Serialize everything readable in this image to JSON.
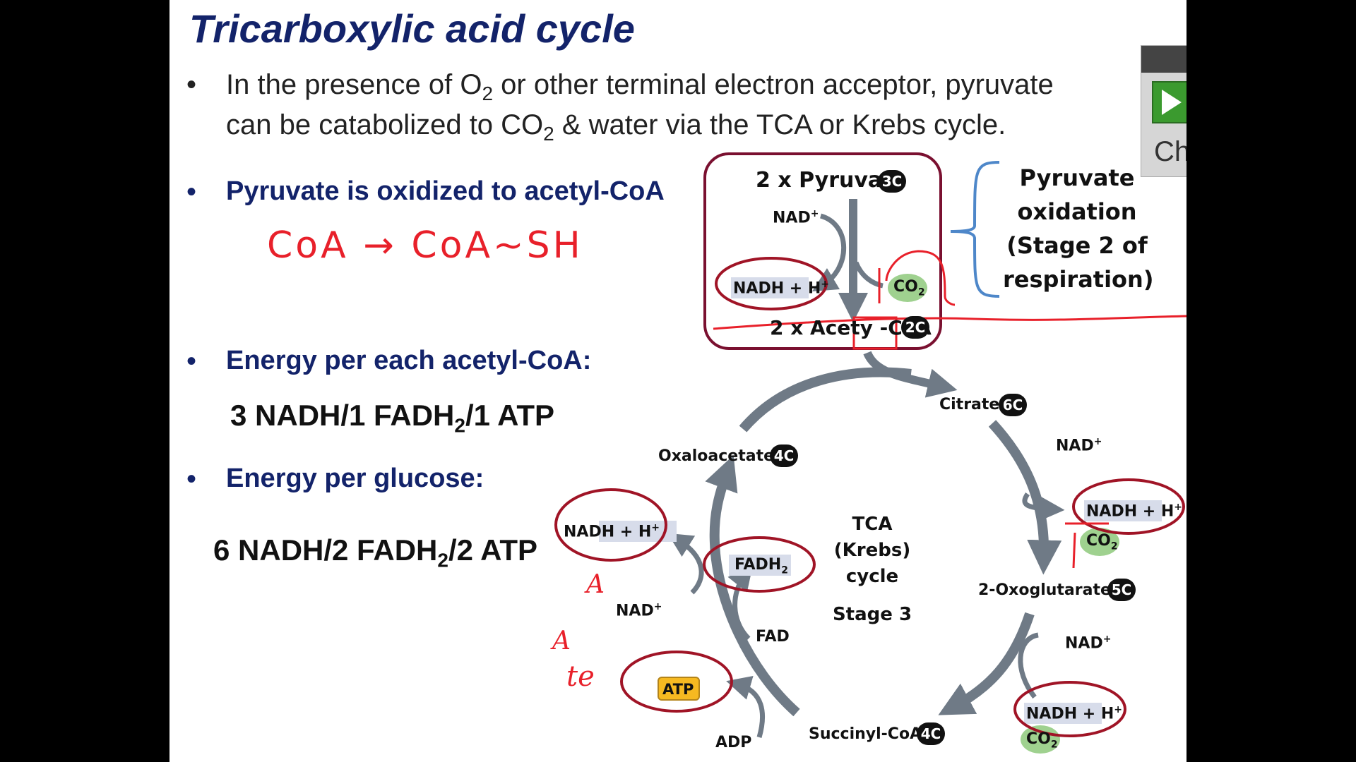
{
  "slide": {
    "title": "Tricarboxylic acid cycle",
    "bullet_glyph": "•",
    "bullet1_part1": "In the presence of O",
    "bullet1_sub1": "2",
    "bullet1_part2": " or other terminal electron acceptor, pyruvate",
    "bullet1_line2_part1": "can be catabolized to CO",
    "bullet1_line2_sub": "2",
    "bullet1_line2_part2": " & water via the TCA or Krebs cycle.",
    "bullet2": "Pyruvate is oxidized to acetyl-CoA",
    "bullet3": "Energy per each acetyl-CoA:",
    "energy_acetyl_part1": "3 NADH/1 FADH",
    "energy_acetyl_sub": "2",
    "energy_acetyl_part2": "/1 ATP",
    "bullet4": "Energy per glucose:",
    "energy_glucose_part1": "6 NADH/2 FADH",
    "energy_glucose_sub": "2",
    "energy_glucose_part2": "/2 ATP"
  },
  "handwriting": {
    "coa_note": "CoA → CoA~SH",
    "mark_a1": "A",
    "mark_a2": "A",
    "mark_te": "te"
  },
  "pyruvate_box": {
    "pyruvate": "2 x  Pyruvate",
    "pyruvate_badge": "3C",
    "nad": "NAD",
    "nad_sup": "+",
    "nadh": "NADH + H",
    "nadh_sup": "+",
    "co2": "CO",
    "co2_sub": "2",
    "acetyl": "2 x  Acety -CoA",
    "acetyl_badge": "2C"
  },
  "bracket_label": [
    "Pyruvate",
    "oxidation",
    "(Stage 2 of",
    "respiration)"
  ],
  "cycle": {
    "center": [
      "TCA",
      "(Krebs)",
      "cycle"
    ],
    "stage": "Stage 3",
    "citrate": "Citrate",
    "citrate_badge": "6C",
    "oxoglutarate": "2-Oxoglutarate",
    "oxoglutarate_badge": "5C",
    "succinyl": "Succinyl-CoA",
    "succinyl_badge": "4C",
    "oxaloacetate": "Oxaloacetate",
    "oxaloacetate_badge": "4C",
    "nad_label": "NAD",
    "nad_sup": "+",
    "nadh_label": "NADH + H",
    "nadh_sup": "+",
    "co2_label": "CO",
    "co2_sub": "2",
    "fadh2_label": "FADH",
    "fadh2_sub": "2",
    "fad_label": "FAD",
    "atp_label": "ATP",
    "adp_label": "ADP"
  },
  "side_panel": {
    "label": "Ch"
  },
  "colors": {
    "title_blue": "#13236a",
    "annotation_red": "#e8202a",
    "ellipse_red": "#a01426",
    "arrow_gray": "#6f7a86",
    "co2_green": "#9fd18f",
    "atp_yellow": "#f6b921",
    "nadh_highlight": "#d7dcea"
  }
}
